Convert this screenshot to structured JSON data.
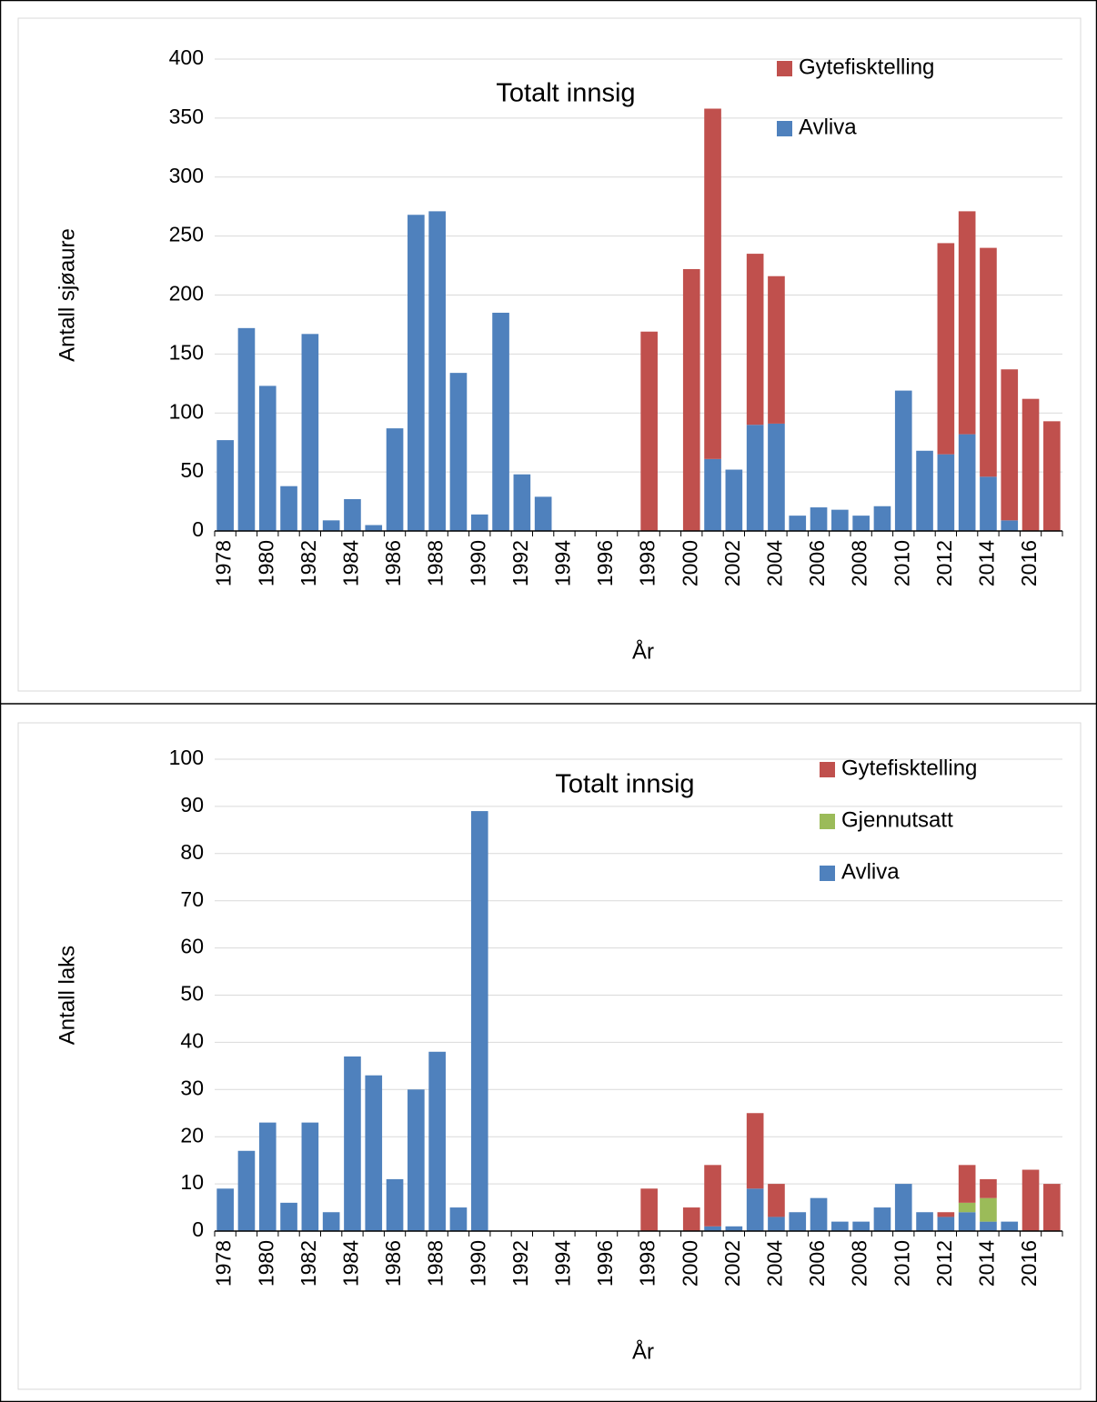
{
  "chart_data": [
    {
      "type": "bar",
      "stacked": true,
      "title": "Totalt innsig",
      "x_label": "År",
      "y_label": "Antall sjøaure",
      "categories": [
        "1978",
        null,
        "1980",
        null,
        "1982",
        null,
        "1984",
        null,
        "1986",
        null,
        "1988",
        null,
        "1990",
        null,
        "1992",
        null,
        "1994",
        null,
        "1996",
        null,
        "1998",
        null,
        "2000",
        null,
        "2002",
        null,
        "2004",
        null,
        "2006",
        null,
        "2008",
        null,
        "2010",
        null,
        "2012",
        null,
        "2014",
        null,
        "2016",
        null
      ],
      "series": [
        {
          "name": "Avliva",
          "color": "#4f81bd",
          "values": [
            77,
            172,
            123,
            38,
            167,
            9,
            27,
            5,
            87,
            268,
            271,
            134,
            14,
            185,
            48,
            29,
            0,
            0,
            0,
            0,
            0,
            0,
            0,
            61,
            52,
            90,
            91,
            13,
            20,
            18,
            13,
            21,
            119,
            68,
            65,
            82,
            46,
            9,
            0,
            0
          ]
        },
        {
          "name": "Gytefisktelling",
          "color": "#c0504d",
          "values": [
            0,
            0,
            0,
            0,
            0,
            0,
            0,
            0,
            0,
            0,
            0,
            0,
            0,
            0,
            0,
            0,
            0,
            0,
            0,
            0,
            169,
            0,
            222,
            297,
            0,
            145,
            125,
            0,
            0,
            0,
            0,
            0,
            0,
            0,
            179,
            189,
            194,
            128,
            112,
            93
          ]
        }
      ],
      "ylim": [
        0,
        400
      ],
      "yticks": [
        0,
        50,
        100,
        150,
        200,
        250,
        300,
        350,
        400
      ],
      "grid": true,
      "legend": "upper right"
    },
    {
      "type": "bar",
      "stacked": true,
      "title": "Totalt innsig",
      "x_label": "År",
      "y_label": "Antall laks",
      "categories": [
        "1978",
        null,
        "1980",
        null,
        "1982",
        null,
        "1984",
        null,
        "1986",
        null,
        "1988",
        null,
        "1990",
        null,
        "1992",
        null,
        "1994",
        null,
        "1996",
        null,
        "1998",
        null,
        "2000",
        null,
        "2002",
        null,
        "2004",
        null,
        "2006",
        null,
        "2008",
        null,
        "2010",
        null,
        "2012",
        null,
        "2014",
        null,
        "2016",
        null
      ],
      "series": [
        {
          "name": "Avliva",
          "color": "#4f81bd",
          "values": [
            9,
            17,
            23,
            6,
            23,
            4,
            37,
            33,
            11,
            30,
            38,
            5,
            89,
            0,
            0,
            0,
            0,
            0,
            0,
            0,
            0,
            0,
            0,
            1,
            1,
            9,
            3,
            4,
            7,
            2,
            2,
            5,
            10,
            4,
            3,
            4,
            2,
            2,
            0,
            0
          ]
        },
        {
          "name": "Gjennutsatt",
          "color": "#9bbb59",
          "values": [
            0,
            0,
            0,
            0,
            0,
            0,
            0,
            0,
            0,
            0,
            0,
            0,
            0,
            0,
            0,
            0,
            0,
            0,
            0,
            0,
            0,
            0,
            0,
            0,
            0,
            0,
            0,
            0,
            0,
            0,
            0,
            0,
            0,
            0,
            0,
            2,
            5,
            0,
            0,
            0
          ]
        },
        {
          "name": "Gytefisktelling",
          "color": "#c0504d",
          "values": [
            0,
            0,
            0,
            0,
            0,
            0,
            0,
            0,
            0,
            0,
            0,
            0,
            0,
            0,
            0,
            0,
            0,
            0,
            0,
            0,
            9,
            0,
            5,
            13,
            0,
            16,
            7,
            0,
            0,
            0,
            0,
            0,
            0,
            0,
            1,
            8,
            4,
            0,
            13,
            10
          ]
        }
      ],
      "ylim": [
        0,
        100
      ],
      "yticks": [
        0,
        10,
        20,
        30,
        40,
        50,
        60,
        70,
        80,
        90,
        100
      ],
      "grid": true,
      "legend": "upper right"
    }
  ]
}
